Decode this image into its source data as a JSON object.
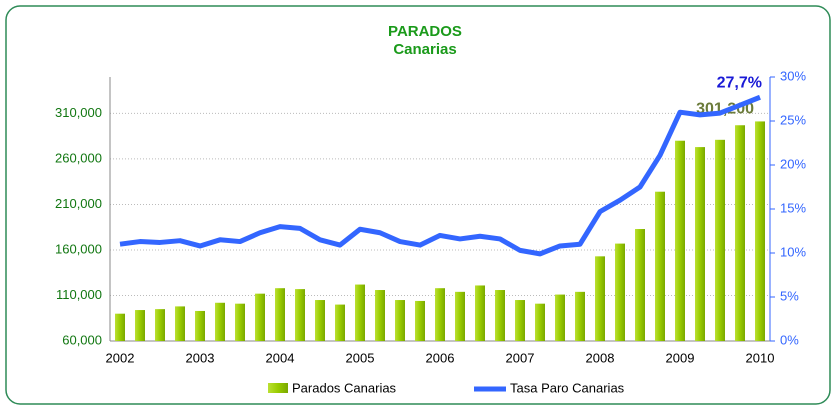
{
  "chart_data": {
    "type": "bar-line",
    "title": "PARADOS",
    "subtitle": "Canarias",
    "categories": [
      "2002",
      null,
      null,
      null,
      "2003",
      null,
      null,
      null,
      "2004",
      null,
      null,
      null,
      "2005",
      null,
      null,
      null,
      "2006",
      null,
      null,
      null,
      "2007",
      null,
      null,
      null,
      "2008",
      null,
      null,
      null,
      "2009",
      null,
      null,
      null,
      "2010"
    ],
    "series": [
      {
        "name": "Parados Canarias",
        "type": "bar",
        "color": "#99cc00",
        "values": [
          90000,
          94000,
          95000,
          98000,
          93000,
          102000,
          101000,
          112000,
          118000,
          117000,
          105000,
          100000,
          122000,
          116000,
          105000,
          104000,
          118000,
          114000,
          121000,
          116000,
          105000,
          101000,
          111000,
          114000,
          153000,
          167000,
          183000,
          224000,
          280000,
          273000,
          281000,
          297000,
          301200
        ],
        "value_labels": [
          null,
          null,
          null,
          null,
          null,
          null,
          null,
          null,
          null,
          null,
          null,
          null,
          null,
          null,
          null,
          null,
          null,
          null,
          null,
          null,
          null,
          null,
          null,
          null,
          null,
          null,
          null,
          null,
          null,
          null,
          null,
          null,
          "301,200"
        ]
      },
      {
        "name": "Tasa Paro Canarias",
        "type": "line",
        "axis": "y2",
        "color": "#3366ff",
        "values": [
          11.0,
          11.3,
          11.2,
          11.4,
          10.8,
          11.5,
          11.3,
          12.3,
          13.0,
          12.8,
          11.5,
          10.9,
          12.7,
          12.3,
          11.3,
          10.9,
          12.0,
          11.6,
          11.9,
          11.6,
          10.3,
          9.9,
          10.8,
          11.0,
          14.7,
          16.0,
          17.5,
          21.1,
          26.0,
          25.7,
          25.9,
          26.8,
          27.7
        ],
        "value_labels": [
          null,
          null,
          null,
          null,
          null,
          null,
          null,
          null,
          null,
          null,
          null,
          null,
          null,
          null,
          null,
          null,
          null,
          null,
          null,
          null,
          null,
          null,
          null,
          null,
          null,
          null,
          null,
          null,
          null,
          null,
          null,
          null,
          "27,7%"
        ]
      }
    ],
    "ylim": [
      60000,
      350000
    ],
    "yticks": [
      {
        "value": 60000,
        "label": "60,000"
      },
      {
        "value": 110000,
        "label": "110,000"
      },
      {
        "value": 160000,
        "label": "160,000"
      },
      {
        "value": 210000,
        "label": "210,000"
      },
      {
        "value": 260000,
        "label": "260,000"
      },
      {
        "value": 310000,
        "label": "310,000"
      }
    ],
    "y2lim": [
      0,
      30
    ],
    "y2ticks": [
      {
        "value": 0,
        "label": "0%"
      },
      {
        "value": 5,
        "label": "5%"
      },
      {
        "value": 10,
        "label": "10%"
      },
      {
        "value": 15,
        "label": "15%"
      },
      {
        "value": 20,
        "label": "20%"
      },
      {
        "value": 25,
        "label": "25%"
      },
      {
        "value": 30,
        "label": "30%"
      }
    ],
    "grid": true,
    "legend": "bottom"
  }
}
